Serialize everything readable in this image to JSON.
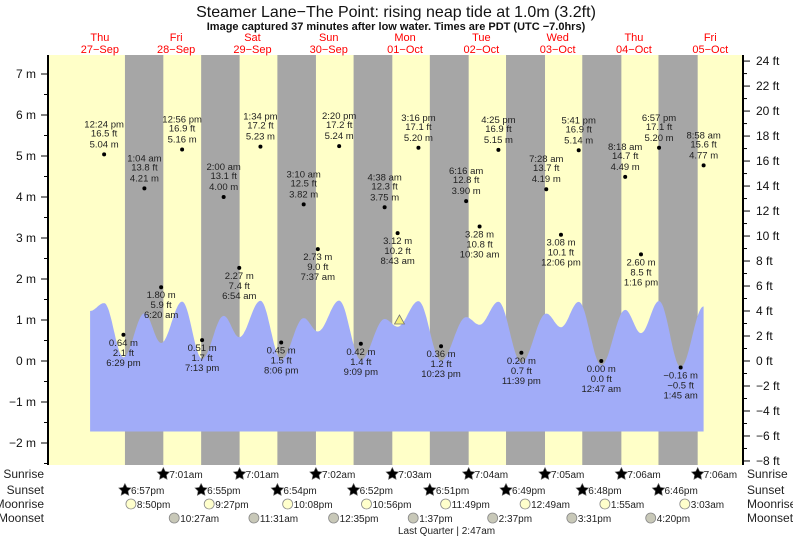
{
  "chart_data": {
    "type": "area",
    "title": "Steamer Lane−The Point: rising  neap tide at 1.0m (3.2ft)",
    "subtitle": "Image captured 37 minutes after low water. Times are PDT (UTC −7.0hrs)",
    "y_left": {
      "unit": "m",
      "ylim": [
        -2.55,
        7.45
      ],
      "ticks": [
        "7 m",
        "6 m",
        "5 m",
        "4 m",
        "3 m",
        "2 m",
        "1 m",
        "0 m",
        "−1 m",
        "−2 m"
      ],
      "tick_values": [
        7,
        6,
        5,
        4,
        3,
        2,
        1,
        0,
        -1,
        -2
      ]
    },
    "y_right": {
      "unit": "ft",
      "ticks": [
        "24 ft",
        "22 ft",
        "20 ft",
        "18 ft",
        "16 ft",
        "14 ft",
        "12 ft",
        "10 ft",
        "8 ft",
        "6 ft",
        "4 ft",
        "2 ft",
        "0 ft",
        "−2 ft",
        "−4 ft",
        "−6 ft",
        "−8 ft"
      ],
      "tick_values": [
        24,
        22,
        20,
        18,
        16,
        14,
        12,
        10,
        8,
        6,
        4,
        2,
        0,
        -2,
        -4,
        -6,
        -8
      ]
    },
    "days": [
      {
        "dow": "Thu",
        "date": "27−Sep"
      },
      {
        "dow": "Fri",
        "date": "28−Sep"
      },
      {
        "dow": "Sat",
        "date": "29−Sep"
      },
      {
        "dow": "Sun",
        "date": "30−Sep"
      },
      {
        "dow": "Mon",
        "date": "01−Oct"
      },
      {
        "dow": "Tue",
        "date": "02−Oct"
      },
      {
        "dow": "Wed",
        "date": "03−Oct"
      },
      {
        "dow": "Thu",
        "date": "04−Oct"
      },
      {
        "dow": "Fri",
        "date": "05−Oct"
      }
    ],
    "tides": [
      {
        "day": 0,
        "hour": 12.4,
        "type": "high",
        "time": "12:24 pm",
        "ft": "16.5 ft",
        "m": "5.04 m",
        "value": 5.04
      },
      {
        "day": 0,
        "hour": 18.48,
        "type": "low",
        "time": "6:29 pm",
        "ft": "2.1 ft",
        "m": "0.64 m",
        "value": 0.64
      },
      {
        "day": 1,
        "hour": 1.07,
        "type": "high",
        "time": "1:04 am",
        "ft": "13.8 ft",
        "m": "4.21 m",
        "value": 4.21
      },
      {
        "day": 1,
        "hour": 6.33,
        "type": "low",
        "time": "6:20 am",
        "ft": "5.9 ft",
        "m": "1.80 m",
        "value": 1.8
      },
      {
        "day": 1,
        "hour": 12.93,
        "type": "high",
        "time": "12:56 pm",
        "ft": "16.9 ft",
        "m": "5.16 m",
        "value": 5.16
      },
      {
        "day": 1,
        "hour": 19.22,
        "type": "low",
        "time": "7:13 pm",
        "ft": "1.7 ft",
        "m": "0.51 m",
        "value": 0.51
      },
      {
        "day": 2,
        "hour": 2.0,
        "type": "high",
        "time": "2:00 am",
        "ft": "13.1 ft",
        "m": "4.00 m",
        "value": 4.0
      },
      {
        "day": 2,
        "hour": 6.9,
        "type": "low",
        "time": "6:54 am",
        "ft": "7.4 ft",
        "m": "2.27 m",
        "value": 2.27
      },
      {
        "day": 2,
        "hour": 13.57,
        "type": "high",
        "time": "1:34 pm",
        "ft": "17.2 ft",
        "m": "5.23 m",
        "value": 5.23
      },
      {
        "day": 2,
        "hour": 20.1,
        "type": "low",
        "time": "8:06 pm",
        "ft": "1.5 ft",
        "m": "0.45 m",
        "value": 0.45
      },
      {
        "day": 3,
        "hour": 3.17,
        "type": "high",
        "time": "3:10 am",
        "ft": "12.5 ft",
        "m": "3.82 m",
        "value": 3.82
      },
      {
        "day": 3,
        "hour": 7.62,
        "type": "low",
        "time": "7:37 am",
        "ft": "9.0 ft",
        "m": "2.73 m",
        "value": 2.73
      },
      {
        "day": 3,
        "hour": 14.33,
        "type": "high",
        "time": "2:20 pm",
        "ft": "17.2 ft",
        "m": "5.24 m",
        "value": 5.24
      },
      {
        "day": 3,
        "hour": 21.15,
        "type": "low",
        "time": "9:09 pm",
        "ft": "1.4 ft",
        "m": "0.42 m",
        "value": 0.42
      },
      {
        "day": 4,
        "hour": 4.63,
        "type": "high",
        "time": "4:38 am",
        "ft": "12.3 ft",
        "m": "3.75 m",
        "value": 3.75
      },
      {
        "day": 4,
        "hour": 8.72,
        "type": "low",
        "time": "8:43 am",
        "ft": "10.2 ft",
        "m": "3.12 m",
        "value": 3.12
      },
      {
        "day": 4,
        "hour": 15.27,
        "type": "high",
        "time": "3:16 pm",
        "ft": "17.1 ft",
        "m": "5.20 m",
        "value": 5.2
      },
      {
        "day": 4,
        "hour": 22.38,
        "type": "low",
        "time": "10:23 pm",
        "ft": "1.2 ft",
        "m": "0.36 m",
        "value": 0.36
      },
      {
        "day": 5,
        "hour": 6.27,
        "type": "high",
        "time": "6:16 am",
        "ft": "12.8 ft",
        "m": "3.90 m",
        "value": 3.9
      },
      {
        "day": 5,
        "hour": 10.5,
        "type": "low",
        "time": "10:30 am",
        "ft": "10.8 ft",
        "m": "3.28 m",
        "value": 3.28
      },
      {
        "day": 5,
        "hour": 16.42,
        "type": "high",
        "time": "4:25 pm",
        "ft": "16.9 ft",
        "m": "5.15 m",
        "value": 5.15
      },
      {
        "day": 5,
        "hour": 23.65,
        "type": "low",
        "time": "11:39 pm",
        "ft": "0.7 ft",
        "m": "0.20 m",
        "value": 0.2
      },
      {
        "day": 6,
        "hour": 7.47,
        "type": "high",
        "time": "7:28 am",
        "ft": "13.7 ft",
        "m": "4.19 m",
        "value": 4.19
      },
      {
        "day": 6,
        "hour": 12.1,
        "type": "low",
        "time": "12:06 pm",
        "ft": "10.1 ft",
        "m": "3.08 m",
        "value": 3.08
      },
      {
        "day": 6,
        "hour": 17.68,
        "type": "high",
        "time": "5:41 pm",
        "ft": "16.9 ft",
        "m": "5.14 m",
        "value": 5.14
      },
      {
        "day": 7,
        "hour": 0.78,
        "type": "low",
        "time": "12:47 am",
        "ft": "0.0 ft",
        "m": "0.00 m",
        "value": 0.0
      },
      {
        "day": 7,
        "hour": 8.3,
        "type": "high",
        "time": "8:18 am",
        "ft": "14.7 ft",
        "m": "4.49 m",
        "value": 4.49
      },
      {
        "day": 7,
        "hour": 13.27,
        "type": "low",
        "time": "1:16 pm",
        "ft": "8.5 ft",
        "m": "2.60 m",
        "value": 2.6
      },
      {
        "day": 7,
        "hour": 18.95,
        "type": "high",
        "time": "6:57 pm",
        "ft": "17.1 ft",
        "m": "5.20 m",
        "value": 5.2
      },
      {
        "day": 8,
        "hour": 1.75,
        "type": "low",
        "time": "1:45 am",
        "ft": "−0.5 ft",
        "m": "−0.16 m",
        "value": -0.16
      },
      {
        "day": 8,
        "hour": 8.97,
        "type": "high",
        "time": "8:58 am",
        "ft": "15.6 ft",
        "m": "4.77 m",
        "value": 4.77
      }
    ],
    "current": {
      "day": 4,
      "hour": 9.3,
      "value": 1.0
    },
    "almanac": {
      "row_labels": {
        "sunrise": "Sunrise",
        "sunset": "Sunset",
        "moonrise": "Moonrise",
        "moonset": "Moonset"
      },
      "sunrise": [
        {
          "day": 1,
          "hour": 7.02,
          "label": "7:01am"
        },
        {
          "day": 2,
          "hour": 7.02,
          "label": "7:01am"
        },
        {
          "day": 3,
          "hour": 7.03,
          "label": "7:02am"
        },
        {
          "day": 4,
          "hour": 7.05,
          "label": "7:03am"
        },
        {
          "day": 5,
          "hour": 7.07,
          "label": "7:04am"
        },
        {
          "day": 6,
          "hour": 7.08,
          "label": "7:05am"
        },
        {
          "day": 7,
          "hour": 7.1,
          "label": "7:06am"
        },
        {
          "day": 8,
          "hour": 7.1,
          "label": "7:06am"
        }
      ],
      "sunset": [
        {
          "day": 0,
          "hour": 18.95,
          "label": "6:57pm"
        },
        {
          "day": 1,
          "hour": 18.92,
          "label": "6:55pm"
        },
        {
          "day": 2,
          "hour": 18.9,
          "label": "6:54pm"
        },
        {
          "day": 3,
          "hour": 18.87,
          "label": "6:52pm"
        },
        {
          "day": 4,
          "hour": 18.85,
          "label": "6:51pm"
        },
        {
          "day": 5,
          "hour": 18.82,
          "label": "6:49pm"
        },
        {
          "day": 6,
          "hour": 18.8,
          "label": "6:48pm"
        },
        {
          "day": 7,
          "hour": 18.77,
          "label": "6:46pm"
        }
      ],
      "moonrise": [
        {
          "day": 0,
          "hour": 20.83,
          "label": "8:50pm"
        },
        {
          "day": 1,
          "hour": 21.45,
          "label": "9:27pm"
        },
        {
          "day": 2,
          "hour": 22.13,
          "label": "10:08pm"
        },
        {
          "day": 3,
          "hour": 22.93,
          "label": "10:56pm"
        },
        {
          "day": 4,
          "hour": 23.82,
          "label": "11:49pm"
        },
        {
          "day": 6,
          "hour": 0.82,
          "label": "12:49am"
        },
        {
          "day": 7,
          "hour": 1.92,
          "label": "1:55am"
        },
        {
          "day": 8,
          "hour": 3.05,
          "label": "3:03am"
        }
      ],
      "moonset": [
        {
          "day": 1,
          "hour": 10.45,
          "label": "10:27am"
        },
        {
          "day": 2,
          "hour": 11.52,
          "label": "11:31am"
        },
        {
          "day": 3,
          "hour": 12.58,
          "label": "12:35pm"
        },
        {
          "day": 4,
          "hour": 13.62,
          "label": "1:37pm"
        },
        {
          "day": 5,
          "hour": 14.62,
          "label": "2:37pm"
        },
        {
          "day": 6,
          "hour": 15.52,
          "label": "3:31pm"
        },
        {
          "day": 7,
          "hour": 16.33,
          "label": "4:20pm"
        }
      ],
      "moon_phase": "Last Quarter | 2:47am"
    },
    "colors": {
      "day": "#ffffc8",
      "night": "#a6a6a6",
      "water": "#a1acf8",
      "day_label": "#ff0000",
      "sunrise": "#b5b03a",
      "sunset": "#d95a1e",
      "moonrise": "#ffffcc",
      "moonset": "#c8c8b8"
    }
  }
}
